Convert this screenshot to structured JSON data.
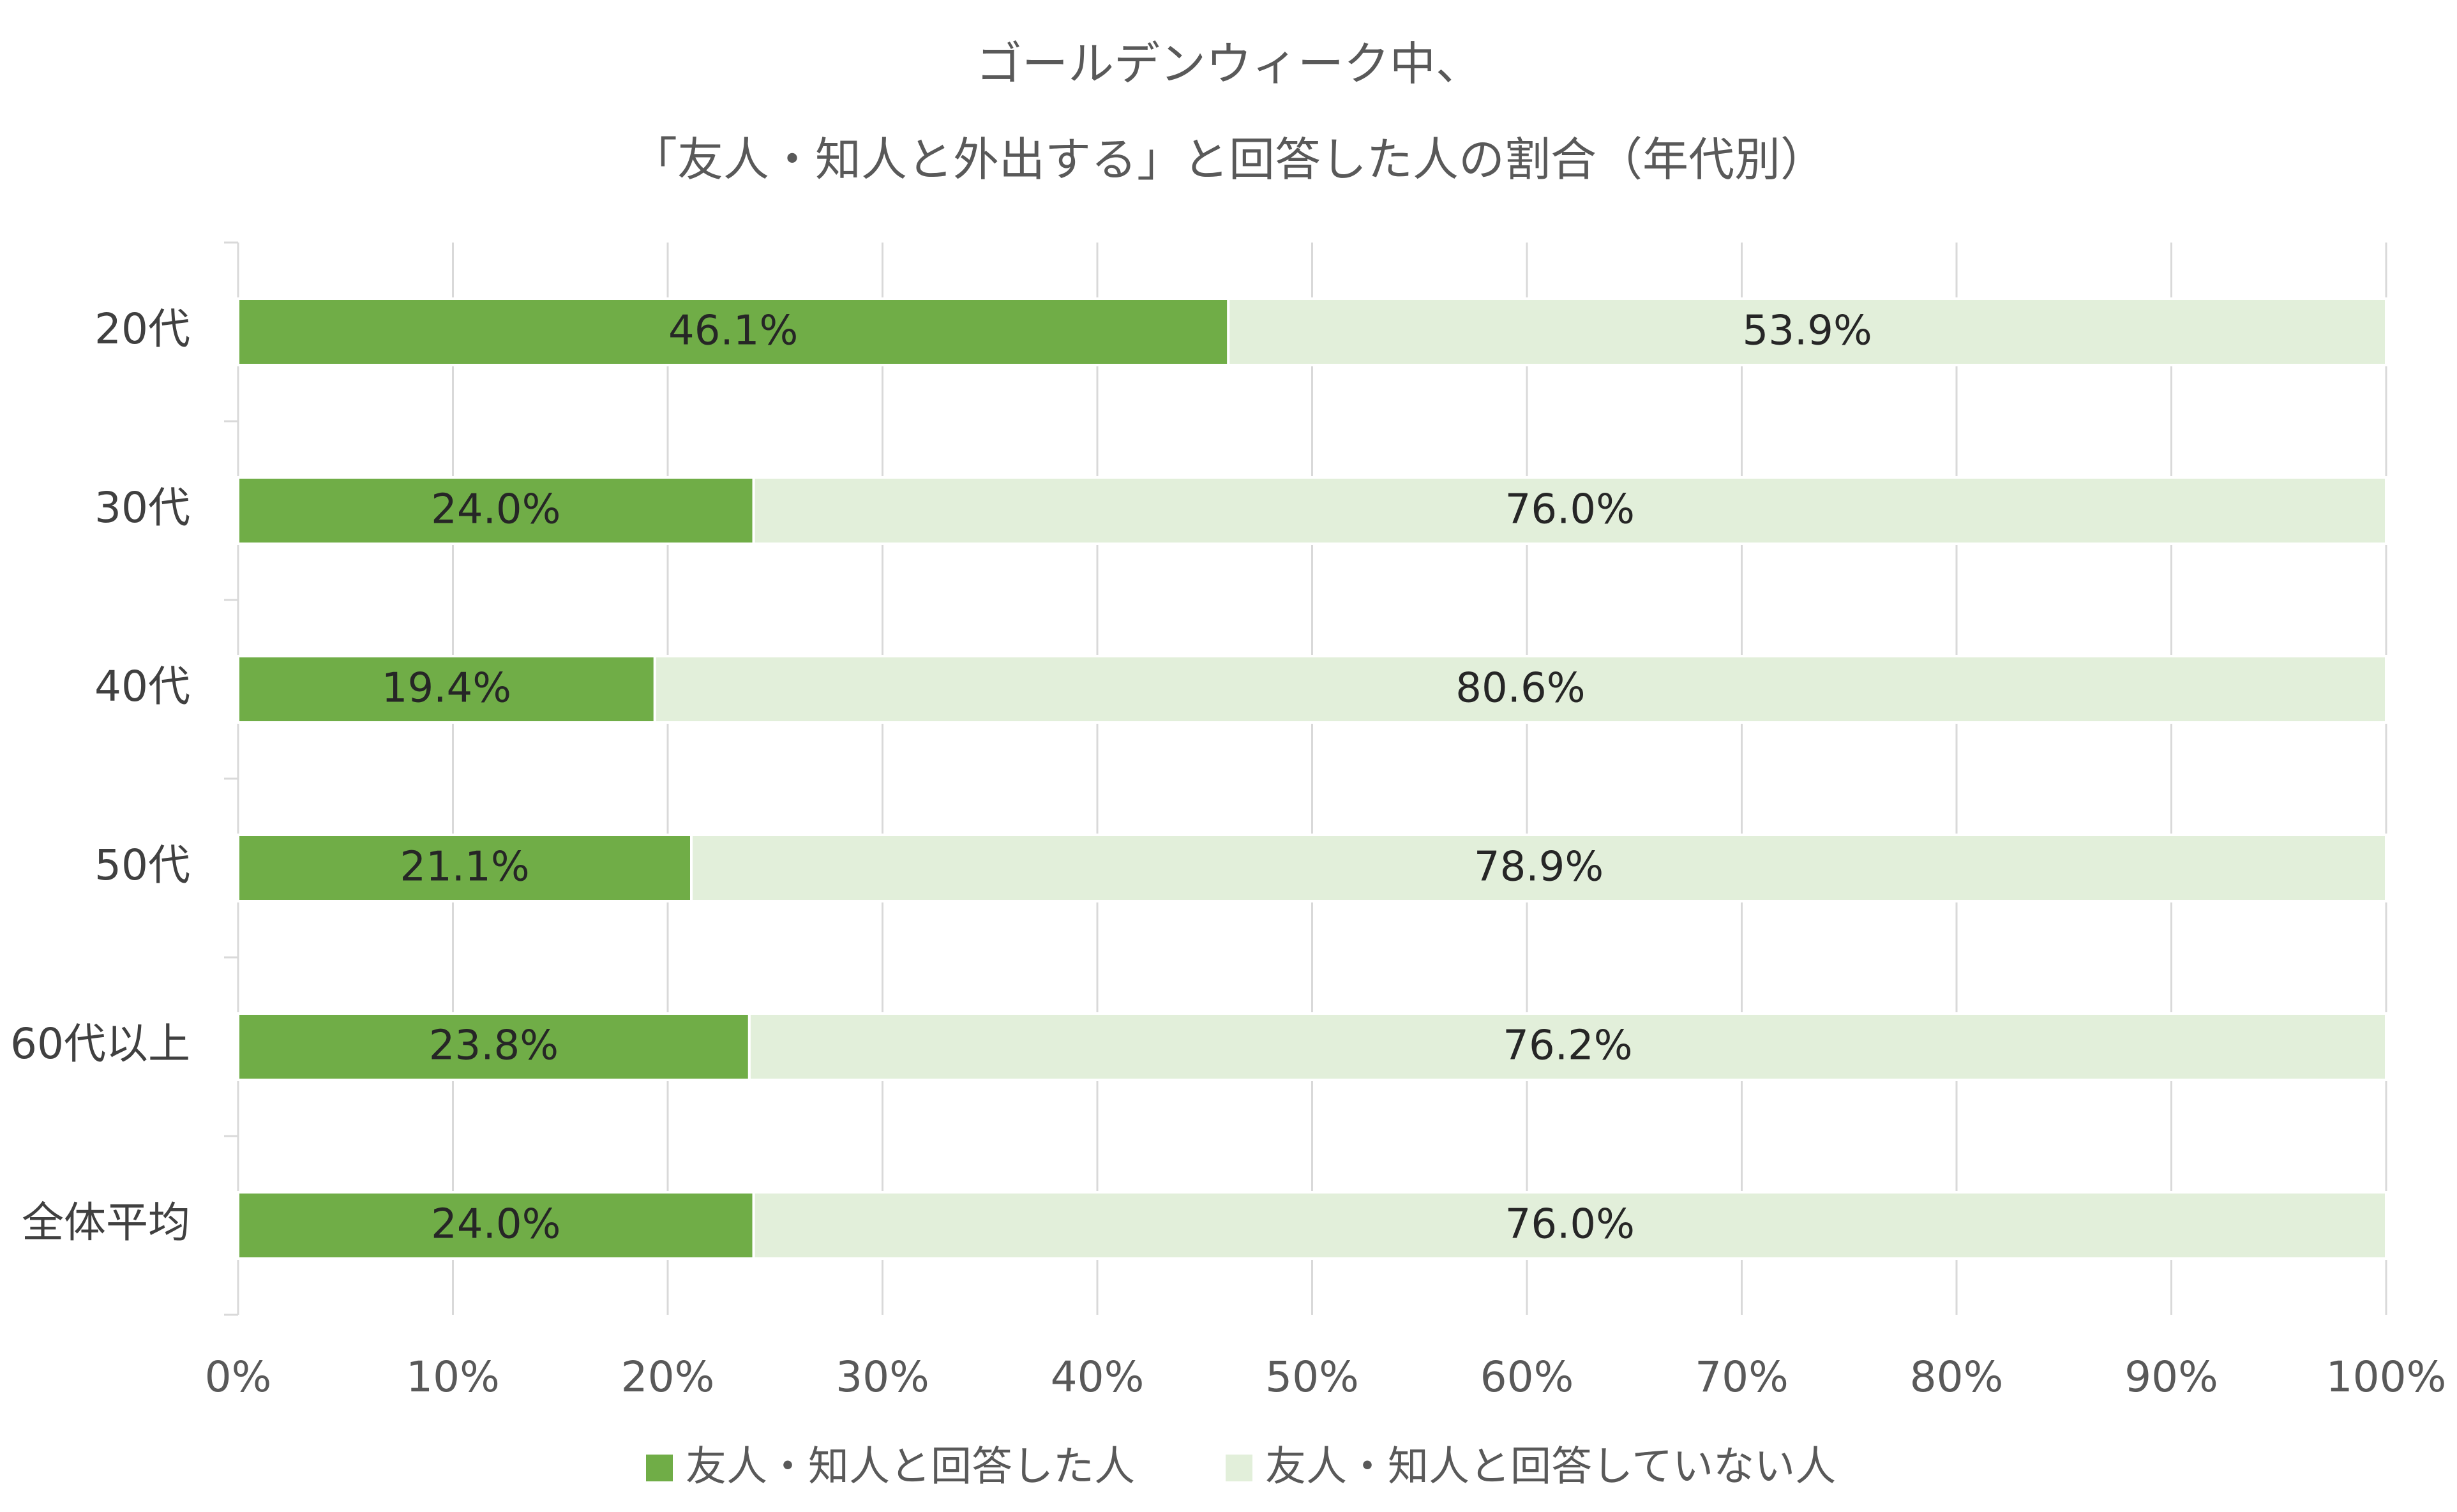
{
  "chart_data": {
    "type": "bar",
    "orientation": "horizontal",
    "stacked": "percent",
    "title": [
      "ゴールデンウィーク中、",
      "「友人・知人と外出する」と回答した人の割合（年代別）"
    ],
    "categories": [
      "20代",
      "30代",
      "40代",
      "50代",
      "60代以上",
      "全体平均"
    ],
    "series": [
      {
        "name": "友人・知人と回答した人",
        "color": "#70ad47",
        "values": [
          46.1,
          24.0,
          19.4,
          21.1,
          23.8,
          24.0
        ],
        "labels": [
          "46.1%",
          "24.0%",
          "19.4%",
          "21.1%",
          "23.8%",
          "24.0%"
        ]
      },
      {
        "name": "友人・知人と回答していない人",
        "color": "#e2efda",
        "values": [
          53.9,
          76.0,
          80.6,
          78.9,
          76.2,
          76.0
        ],
        "labels": [
          "53.9%",
          "76.0%",
          "80.6%",
          "78.9%",
          "76.2%",
          "76.0%"
        ]
      }
    ],
    "xlim": [
      0,
      100
    ],
    "xticks": [
      "0%",
      "10%",
      "20%",
      "30%",
      "40%",
      "50%",
      "60%",
      "70%",
      "80%",
      "90%",
      "100%"
    ],
    "grid": true,
    "legend_position": "bottom"
  }
}
